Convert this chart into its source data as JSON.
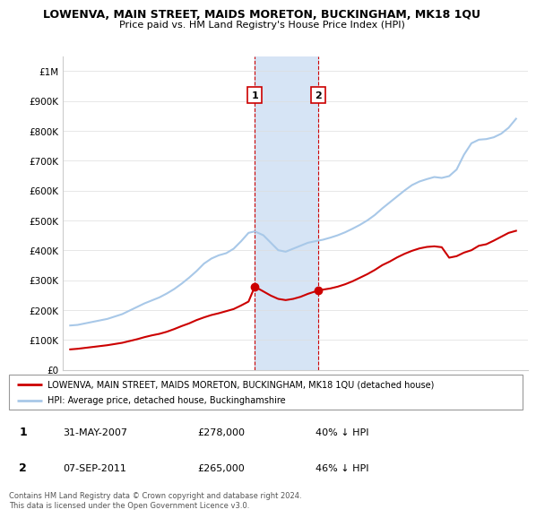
{
  "title": "LOWENVA, MAIN STREET, MAIDS MORETON, BUCKINGHAM, MK18 1QU",
  "subtitle": "Price paid vs. HM Land Registry's House Price Index (HPI)",
  "legend_line1": "LOWENVA, MAIN STREET, MAIDS MORETON, BUCKINGHAM, MK18 1QU (detached house)",
  "legend_line2": "HPI: Average price, detached house, Buckinghamshire",
  "footnote": "Contains HM Land Registry data © Crown copyright and database right 2024.\nThis data is licensed under the Open Government Licence v3.0.",
  "table": [
    {
      "num": "1",
      "date": "31-MAY-2007",
      "price": "£278,000",
      "hpi": "40% ↓ HPI"
    },
    {
      "num": "2",
      "date": "07-SEP-2011",
      "price": "£265,000",
      "hpi": "46% ↓ HPI"
    }
  ],
  "hpi_color": "#a8c8e8",
  "price_color": "#cc0000",
  "highlight_color": "#d6e4f5",
  "marker1_x": 2007.42,
  "marker2_x": 2011.68,
  "marker1_y": 278000,
  "marker2_y": 265000,
  "ylim": [
    0,
    1050000
  ],
  "xlim_start": 1994.5,
  "xlim_end": 2025.8,
  "yticks": [
    0,
    100000,
    200000,
    300000,
    400000,
    500000,
    600000,
    700000,
    800000,
    900000,
    1000000
  ],
  "ytick_labels": [
    "£0",
    "£100K",
    "£200K",
    "£300K",
    "£400K",
    "£500K",
    "£600K",
    "£700K",
    "£800K",
    "£900K",
    "£1M"
  ],
  "hpi_years": [
    1995,
    1995.5,
    1996,
    1996.5,
    1997,
    1997.5,
    1998,
    1998.5,
    1999,
    1999.5,
    2000,
    2000.5,
    2001,
    2001.5,
    2002,
    2002.5,
    2003,
    2003.5,
    2004,
    2004.5,
    2005,
    2005.5,
    2006,
    2006.5,
    2007,
    2007.42,
    2008,
    2008.5,
    2009,
    2009.5,
    2010,
    2010.5,
    2011,
    2011.68,
    2012,
    2012.5,
    2013,
    2013.5,
    2014,
    2014.5,
    2015,
    2015.5,
    2016,
    2016.5,
    2017,
    2017.5,
    2018,
    2018.5,
    2019,
    2019.5,
    2020,
    2020.5,
    2021,
    2021.5,
    2022,
    2022.5,
    2023,
    2023.5,
    2024,
    2024.5,
    2025
  ],
  "hpi_values": [
    148000,
    150000,
    155000,
    160000,
    165000,
    170000,
    178000,
    186000,
    198000,
    210000,
    222000,
    232000,
    242000,
    255000,
    270000,
    288000,
    308000,
    330000,
    355000,
    372000,
    383000,
    390000,
    405000,
    430000,
    458000,
    463000,
    450000,
    425000,
    400000,
    395000,
    405000,
    415000,
    425000,
    432000,
    435000,
    442000,
    450000,
    460000,
    472000,
    485000,
    500000,
    518000,
    540000,
    560000,
    580000,
    600000,
    618000,
    630000,
    638000,
    645000,
    642000,
    648000,
    670000,
    720000,
    758000,
    770000,
    772000,
    778000,
    790000,
    810000,
    840000
  ],
  "red_years": [
    1995,
    1995.5,
    1996,
    1996.5,
    1997,
    1997.5,
    1998,
    1998.5,
    1999,
    1999.5,
    2000,
    2000.5,
    2001,
    2001.5,
    2002,
    2002.5,
    2003,
    2003.5,
    2004,
    2004.5,
    2005,
    2005.5,
    2006,
    2006.5,
    2007,
    2007.42,
    2008,
    2008.5,
    2009,
    2009.5,
    2010,
    2010.5,
    2011,
    2011.68,
    2012,
    2012.5,
    2013,
    2013.5,
    2014,
    2014.5,
    2015,
    2015.5,
    2016,
    2016.5,
    2017,
    2017.5,
    2018,
    2018.5,
    2019,
    2019.5,
    2020,
    2020.5,
    2021,
    2021.5,
    2022,
    2022.5,
    2023,
    2023.5,
    2024,
    2024.5,
    2025
  ],
  "red_values": [
    68000,
    70000,
    73000,
    76000,
    79000,
    82000,
    86000,
    90000,
    96000,
    102000,
    109000,
    115000,
    120000,
    127000,
    136000,
    146000,
    155000,
    166000,
    175000,
    183000,
    189000,
    196000,
    203000,
    215000,
    228000,
    278000,
    262000,
    248000,
    237000,
    233000,
    237000,
    244000,
    254000,
    265000,
    268000,
    272000,
    278000,
    286000,
    296000,
    308000,
    320000,
    334000,
    350000,
    362000,
    376000,
    388000,
    398000,
    406000,
    411000,
    413000,
    410000,
    375000,
    380000,
    392000,
    400000,
    415000,
    420000,
    432000,
    445000,
    458000,
    465000
  ]
}
